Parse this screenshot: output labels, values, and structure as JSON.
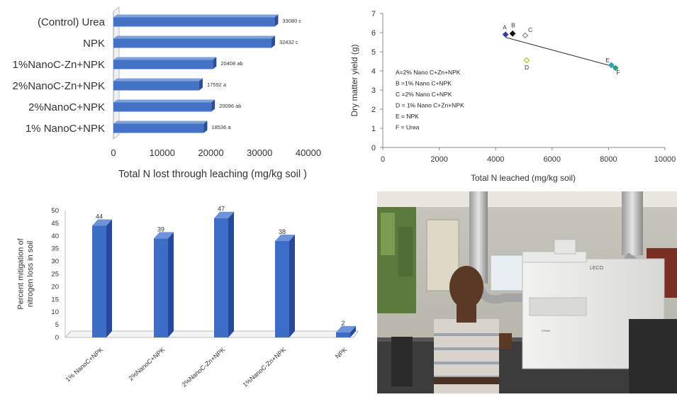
{
  "chart_data": [
    {
      "type": "bar",
      "orientation": "horizontal",
      "categories": [
        "(Control) Urea",
        "NPK",
        "1%NanoC-Zn+NPK",
        "2%NanoC-Zn+NPK",
        "2%NanoC+NPK",
        "1% NanoC+NPK"
      ],
      "values": [
        33080,
        32432,
        20408,
        17592,
        20096,
        18536
      ],
      "data_labels": [
        "33080 c",
        "32432 c",
        "20408 ab",
        "17592 a",
        "20096 ab",
        "18536 a"
      ],
      "xlabel": "Total N lost through leaching (mg/kg soil )",
      "xlim": [
        0,
        40000
      ],
      "xticks": [
        "0",
        "10000",
        "20000",
        "30000",
        "40000"
      ],
      "colors": {
        "bar": "#4472c4",
        "bar_dark": "#2a4f96",
        "bar_light": "#7fa1dc"
      }
    },
    {
      "type": "scatter",
      "points": [
        {
          "label": "A",
          "x": 4350,
          "y": 5.9,
          "color": "#3a3a9a",
          "shape": "diamond-filled"
        },
        {
          "label": "B",
          "x": 4600,
          "y": 5.95,
          "color": "#111111",
          "shape": "diamond-filled"
        },
        {
          "label": "C",
          "x": 5050,
          "y": 5.85,
          "color": "#888888",
          "shape": "diamond-open"
        },
        {
          "label": "D",
          "x": 5100,
          "y": 4.55,
          "color": "#9acd32",
          "shape": "diamond-open"
        },
        {
          "label": "E",
          "x": 8100,
          "y": 4.3,
          "color": "#2e9fbf",
          "shape": "diamond-filled"
        },
        {
          "label": "F",
          "x": 8250,
          "y": 4.15,
          "color": "#2aa080",
          "shape": "diamond-filled"
        }
      ],
      "trendline": {
        "x": [
          4350,
          8250
        ],
        "y": [
          5.75,
          4.2
        ]
      },
      "legend_lines": [
        "A=2% Nano C+Zn+NPK",
        "B =1% Nano C+NPK",
        "C =2% Nano C+NPK",
        "D = 1% Nano C+Zn+NPK",
        "E = NPK",
        "F = Urea"
      ],
      "xlabel": "Total N leached (mg/kg soil)",
      "ylabel": "Dry matter yield (g)",
      "xlim": [
        0,
        10000
      ],
      "ylim": [
        0,
        7
      ],
      "xticks": [
        "0",
        "2000",
        "4000",
        "6000",
        "8000",
        "10000"
      ],
      "yticks": [
        "0",
        "1",
        "2",
        "3",
        "4",
        "5",
        "6",
        "7"
      ]
    },
    {
      "type": "bar",
      "categories": [
        "1% NanoC+NPK",
        "2%NanoC+NPK",
        "2%NanoC-Zn+NPK",
        "1%NanoC-Zn+NPK",
        "NPK"
      ],
      "values": [
        44,
        39,
        47,
        38,
        2
      ],
      "data_labels": [
        "44",
        "39",
        "47",
        "38",
        "2"
      ],
      "ylabel": "Percent mitigation of\nnitrogen loss in soil",
      "ylim": [
        0,
        50
      ],
      "yticks": [
        "0",
        "5",
        "10",
        "15",
        "20",
        "25",
        "30",
        "35",
        "40",
        "45",
        "50"
      ],
      "colors": {
        "bar": "#3d6dc6",
        "bar_dark": "#27499a",
        "bar_light": "#6f93d8"
      }
    }
  ],
  "photo": {
    "instrument_brand": "LECO",
    "instrument_model": "FP828"
  }
}
